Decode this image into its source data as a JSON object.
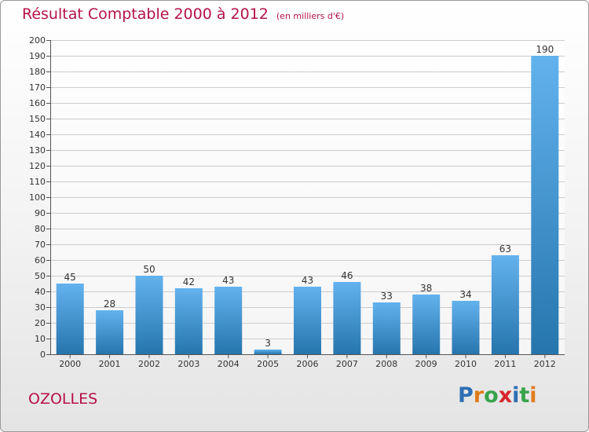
{
  "header": {
    "title": "Résultat Comptable 2000 à 2012",
    "subtitle": "(en milliers d'€)"
  },
  "footer": {
    "commune": "OZOLLES",
    "logo_text": "Proxiti"
  },
  "colors": {
    "title": "#b5124a",
    "bar_top": "#63b2ee",
    "bar_bottom": "#2675ad",
    "grid": "#cccccc",
    "logo_letters": [
      "#2e6fb3",
      "#e07b1b",
      "#37a34a",
      "#d7262b",
      "#2e6fb3",
      "#37a34a",
      "#e07b1b"
    ]
  },
  "chart_data": {
    "type": "bar",
    "categories": [
      "2000",
      "2001",
      "2002",
      "2003",
      "2004",
      "2005",
      "2006",
      "2007",
      "2008",
      "2009",
      "2010",
      "2011",
      "2012"
    ],
    "values": [
      45,
      28,
      50,
      42,
      43,
      3,
      43,
      46,
      33,
      38,
      34,
      63,
      190
    ],
    "title": "Résultat Comptable 2000 à 2012",
    "subtitle": "(en milliers d'€)",
    "xlabel": "",
    "ylabel": "",
    "ylim": [
      0,
      200
    ],
    "yticks": [
      0,
      10,
      20,
      30,
      40,
      50,
      60,
      70,
      80,
      90,
      100,
      110,
      120,
      130,
      140,
      150,
      160,
      170,
      180,
      190,
      200
    ],
    "grid": true,
    "data_labels": true,
    "legend": "none"
  }
}
